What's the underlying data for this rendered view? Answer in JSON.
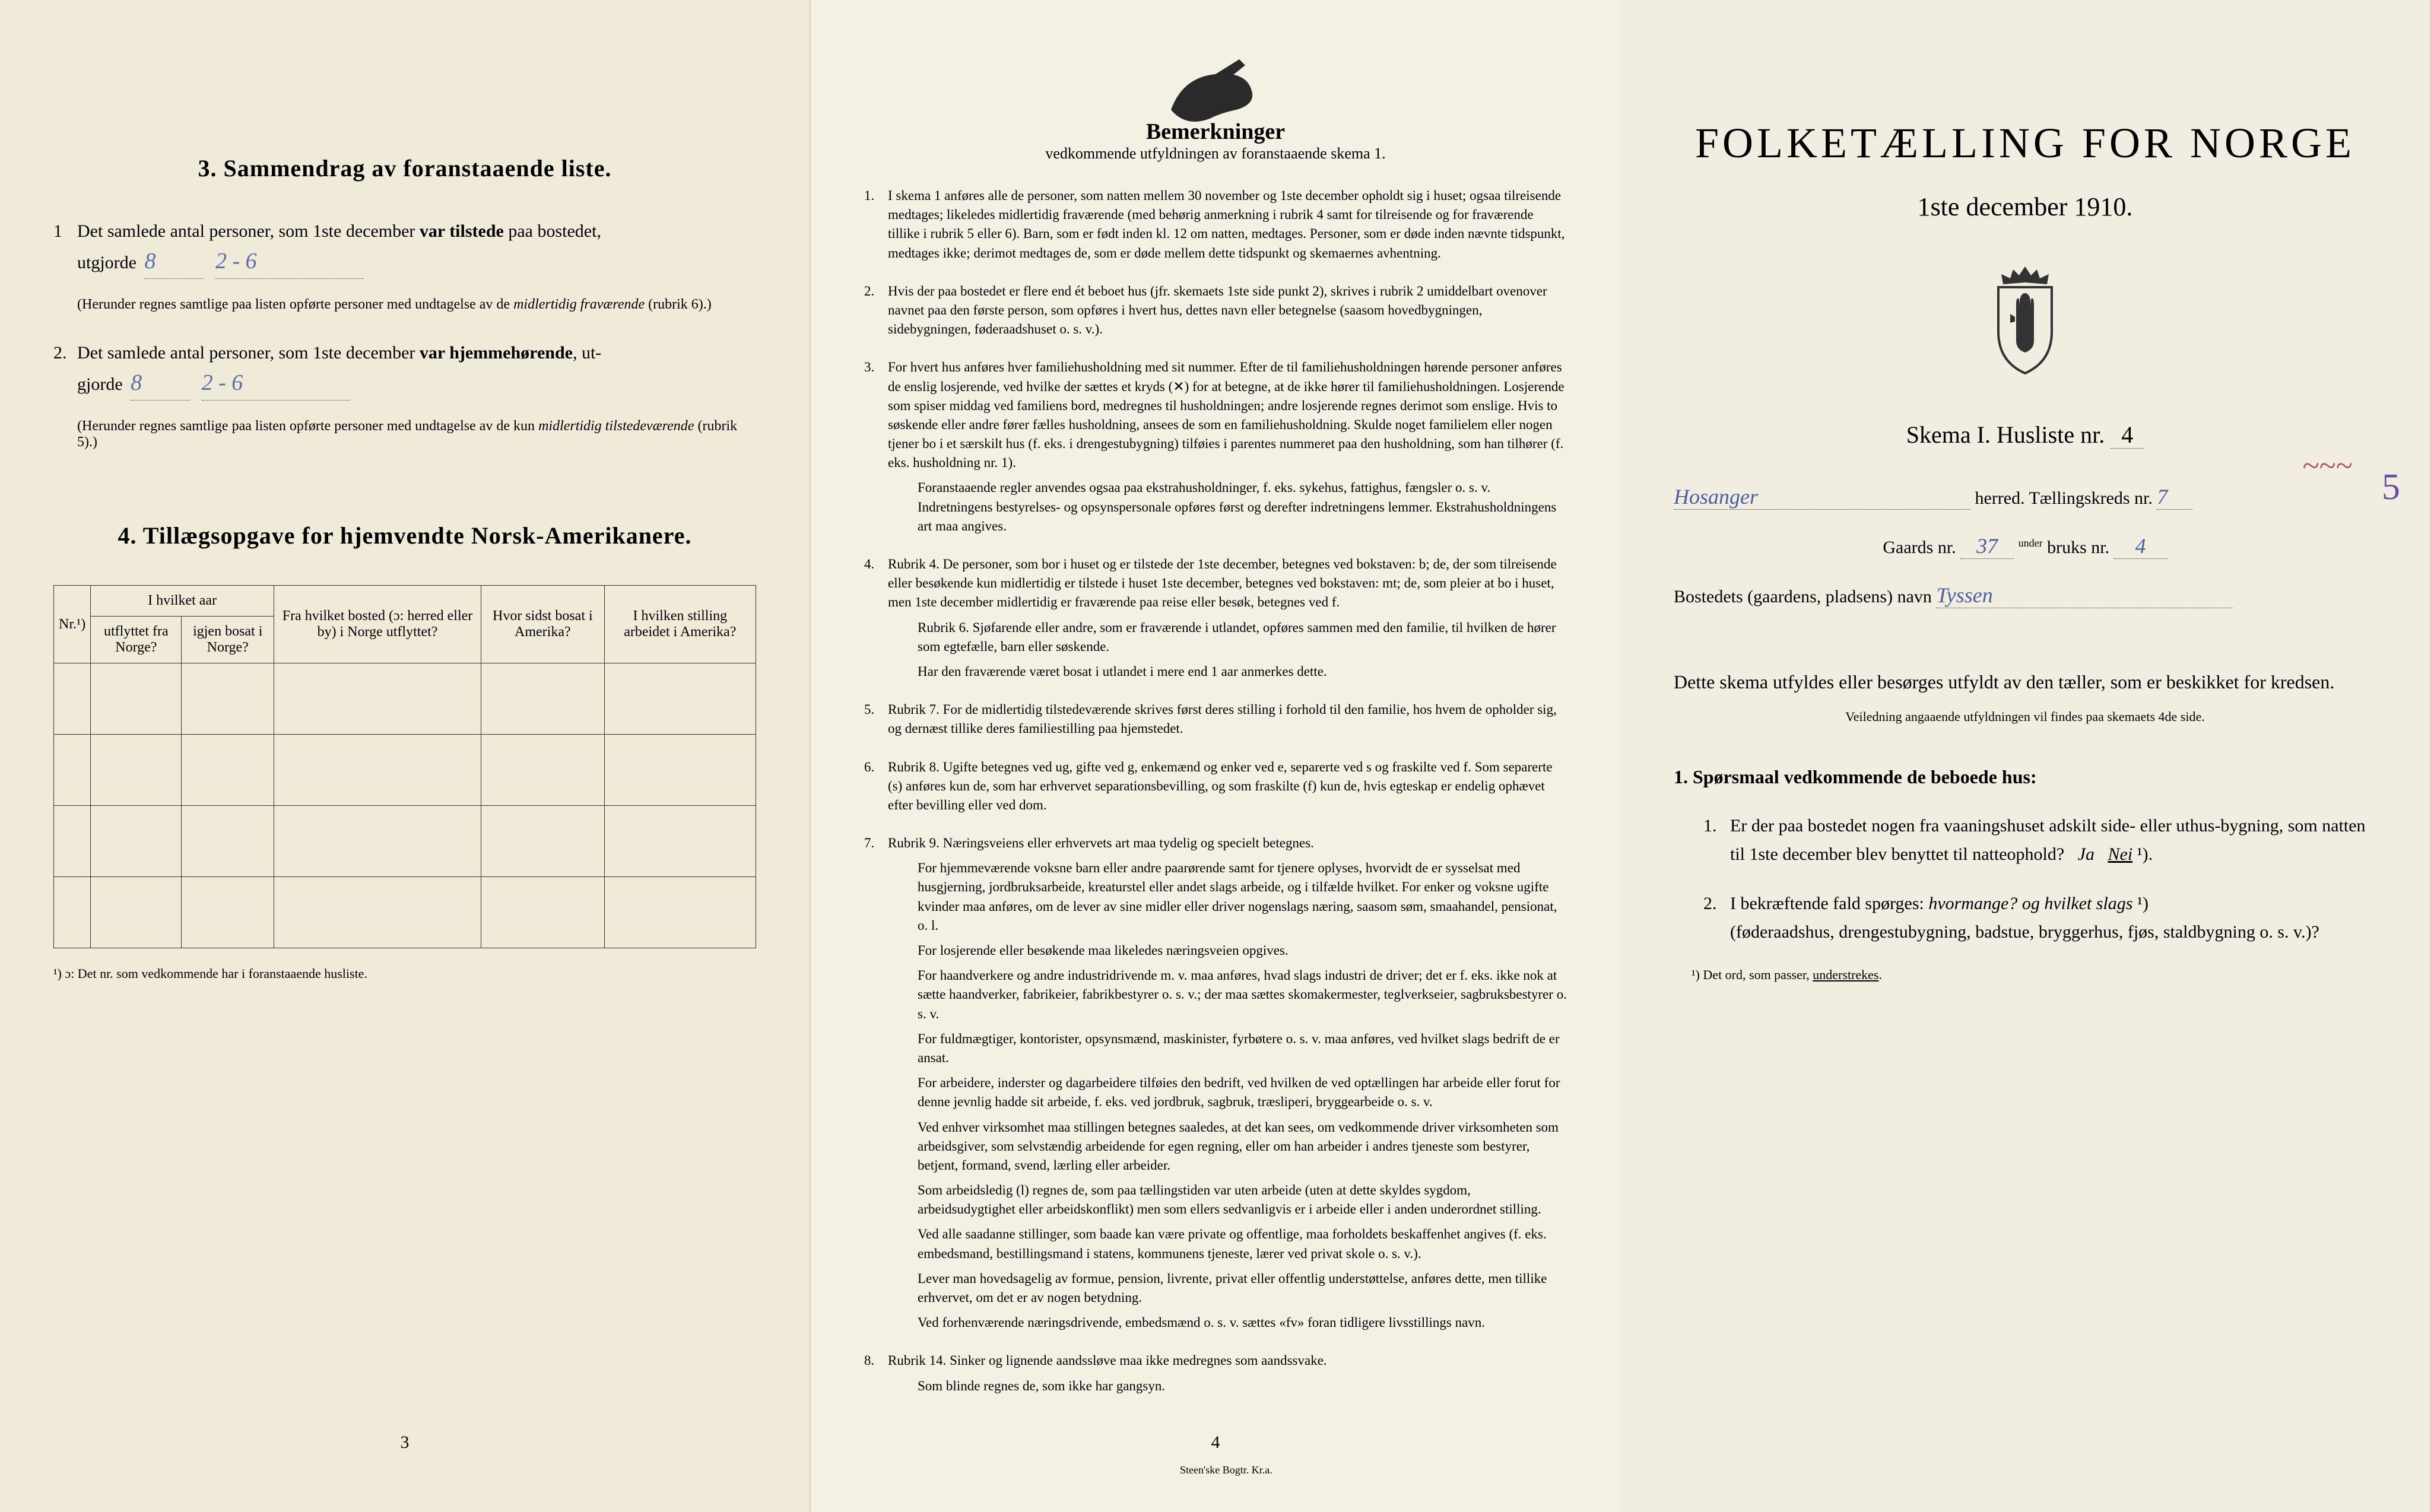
{
  "panel1": {
    "section3_title": "3.   Sammendrag av foranstaaende liste.",
    "item1_prefix": "Det samlede antal personer, som 1ste december",
    "item1_bold": "var tilstede",
    "item1_suffix": "paa bostedet,",
    "item1_line2_prefix": "utgjorde",
    "item1_value1": "8",
    "item1_value2": "2 - 6",
    "item1_note": "(Herunder regnes samtlige paa listen opførte personer med undtagelse av de midlertidig fraværende (rubrik 6).)",
    "item2_prefix": "Det samlede antal personer, som 1ste december",
    "item2_bold": "var hjemmehørende",
    "item2_suffix": ", ut-",
    "item2_line2_prefix": "gjorde",
    "item2_value1": "8",
    "item2_value2": "2 - 6",
    "item2_note": "(Herunder regnes samtlige paa listen opførte personer med undtagelse av de kun midlertidig tilstedeværende (rubrik 5).)",
    "section4_title": "4.  Tillægsopgave for hjemvendte Norsk-Amerikanere.",
    "table": {
      "col_nr": "Nr.¹)",
      "col_aar": "I hvilket aar",
      "col_aar_sub1": "utflyttet fra Norge?",
      "col_aar_sub2": "igjen bosat i Norge?",
      "col_bosted": "Fra hvilket bosted (ɔ: herred eller by) i Norge utflyttet?",
      "col_sidst": "Hvor sidst bosat i Amerika?",
      "col_stilling": "I hvilken stilling arbeidet i Amerika?"
    },
    "footnote": "¹) ɔ: Det nr. som vedkommende har i foranstaaende husliste.",
    "page_num": "3"
  },
  "panel2": {
    "title": "Bemerkninger",
    "subtitle": "vedkommende utfyldningen av foranstaaende skema 1.",
    "rules": [
      {
        "n": "1.",
        "t": "I skema 1 anføres alle de personer, som natten mellem 30 november og 1ste december opholdt sig i huset; ogsaa tilreisende medtages; likeledes midlertidig fraværende (med behørig anmerkning i rubrik 4 samt for tilreisende og for fraværende tillike i rubrik 5 eller 6). Barn, som er født inden kl. 12 om natten, medtages. Personer, som er døde inden nævnte tidspunkt, medtages ikke; derimot medtages de, som er døde mellem dette tidspunkt og skemaernes avhentning."
      },
      {
        "n": "2.",
        "t": "Hvis der paa bostedet er flere end ét beboet hus (jfr. skemaets 1ste side punkt 2), skrives i rubrik 2 umiddelbart ovenover navnet paa den første person, som opføres i hvert hus, dettes navn eller betegnelse (saasom hovedbygningen, sidebygningen, føderaadshuset o. s. v.)."
      },
      {
        "n": "3.",
        "t": "For hvert hus anføres hver familiehusholdning med sit nummer. Efter de til familiehusholdningen hørende personer anføres de enslig losjerende, ved hvilke der sættes et kryds (✕) for at betegne, at de ikke hører til familiehusholdningen. Losjerende som spiser middag ved familiens bord, medregnes til husholdningen; andre losjerende regnes derimot som enslige. Hvis to søskende eller andre fører fælles husholdning, ansees de som en familiehusholdning. Skulde noget familielem eller nogen tjener bo i et særskilt hus (f. eks. i drengestubygning) tilføies i parentes nummeret paa den husholdning, som han tilhører (f. eks. husholdning nr. 1).",
        "extra": "Foranstaaende regler anvendes ogsaa paa ekstrahusholdninger, f. eks. sykehus, fattighus, fængsler o. s. v. Indretningens bestyrelses- og opsynspersonale opføres først og derefter indretningens lemmer. Ekstrahusholdningens art maa angives."
      },
      {
        "n": "4.",
        "t": "Rubrik 4. De personer, som bor i huset og er tilstede der 1ste december, betegnes ved bokstaven: b; de, der som tilreisende eller besøkende kun midlertidig er tilstede i huset 1ste december, betegnes ved bokstaven: mt; de, som pleier at bo i huset, men 1ste december midlertidig er fraværende paa reise eller besøk, betegnes ved f.",
        "extra": "Rubrik 6. Sjøfarende eller andre, som er fraværende i utlandet, opføres sammen med den familie, til hvilken de hører som egtefælle, barn eller søskende.",
        "extra2": "Har den fraværende været bosat i utlandet i mere end 1 aar anmerkes dette."
      },
      {
        "n": "5.",
        "t": "Rubrik 7. For de midlertidig tilstedeværende skrives først deres stilling i forhold til den familie, hos hvem de opholder sig, og dernæst tillike deres familiestilling paa hjemstedet."
      },
      {
        "n": "6.",
        "t": "Rubrik 8. Ugifte betegnes ved ug, gifte ved g, enkemænd og enker ved e, separerte ved s og fraskilte ved f. Som separerte (s) anføres kun de, som har erhvervet separationsbevilling, og som fraskilte (f) kun de, hvis egteskap er endelig ophævet efter bevilling eller ved dom."
      },
      {
        "n": "7.",
        "t": "Rubrik 9. Næringsveiens eller erhvervets art maa tydelig og specielt betegnes.",
        "paras": [
          "For hjemmeværende voksne barn eller andre paarørende samt for tjenere oplyses, hvorvidt de er sysselsat med husgjerning, jordbruksarbeide, kreaturstel eller andet slags arbeide, og i tilfælde hvilket. For enker og voksne ugifte kvinder maa anføres, om de lever av sine midler eller driver nogenslags næring, saasom søm, smaahandel, pensionat, o. l.",
          "For losjerende eller besøkende maa likeledes næringsveien opgives.",
          "For haandverkere og andre industridrivende m. v. maa anføres, hvad slags industri de driver; det er f. eks. ikke nok at sætte haandverker, fabrikeier, fabrikbestyrer o. s. v.; der maa sættes skomakermester, teglverkseier, sagbruksbestyrer o. s. v.",
          "For fuldmægtiger, kontorister, opsynsmænd, maskinister, fyrbøtere o. s. v. maa anføres, ved hvilket slags bedrift de er ansat.",
          "For arbeidere, inderster og dagarbeidere tilføies den bedrift, ved hvilken de ved optællingen har arbeide eller forut for denne jevnlig hadde sit arbeide, f. eks. ved jordbruk, sagbruk, træsliperi, bryggearbeide o. s. v.",
          "Ved enhver virksomhet maa stillingen betegnes saaledes, at det kan sees, om vedkommende driver virksomheten som arbeidsgiver, som selvstændig arbeidende for egen regning, eller om han arbeider i andres tjeneste som bestyrer, betjent, formand, svend, lærling eller arbeider.",
          "Som arbeidsledig (l) regnes de, som paa tællingstiden var uten arbeide (uten at dette skyldes sygdom, arbeidsudygtighet eller arbeidskonflikt) men som ellers sedvanligvis er i arbeide eller i anden underordnet stilling.",
          "Ved alle saadanne stillinger, som baade kan være private og offentlige, maa forholdets beskaffenhet angives (f. eks. embedsmand, bestillingsmand i statens, kommunens tjeneste, lærer ved privat skole o. s. v.).",
          "Lever man hovedsagelig av formue, pension, livrente, privat eller offentlig understøttelse, anføres dette, men tillike erhvervet, om det er av nogen betydning.",
          "Ved forhenværende næringsdrivende, embedsmænd o. s. v. sættes «fv» foran tidligere livsstillings navn."
        ]
      },
      {
        "n": "8.",
        "t": "Rubrik 14. Sinker og lignende aandssløve maa ikke medregnes som aandssvake.",
        "extra": "Som blinde regnes de, som ikke har gangsyn."
      }
    ],
    "page_num": "4",
    "printer": "Steen'ske Bogtr.  Kr.a."
  },
  "panel3": {
    "main_title": "FOLKETÆLLING FOR NORGE",
    "date": "1ste december 1910.",
    "skema_label": "Skema I.  Husliste nr.",
    "skema_value": "4",
    "herred_value": "Hosanger",
    "herred_label": "herred.  Tællingskreds nr.",
    "kreds_value": "7",
    "red_mark": "5",
    "gaards_label": "Gaards nr.",
    "gaards_value": "37",
    "gaards_note": "under",
    "bruks_label": "bruks nr.",
    "bruks_value": "4",
    "bosted_label": "Bostedets (gaardens, pladsens) navn",
    "bosted_value": "Tyssen",
    "body_para": "Dette skema utfyldes eller besørges utfyldt av den tæller, som er beskikket for kredsen.",
    "small_center": "Veiledning angaaende utfyldningen vil findes paa skemaets 4de side.",
    "q_heading": "1. Spørsmaal vedkommende de beboede hus:",
    "q1_num": "1.",
    "q1_text": "Er der paa bostedet nogen fra vaaningshuset adskilt side- eller uthus-bygning, som natten til 1ste december blev benyttet til natteophold?",
    "q1_ja": "Ja",
    "q1_nei": "Nei",
    "q1_sup": "¹).",
    "q2_num": "2.",
    "q2_text_a": "I bekræftende fald spørges:",
    "q2_text_b": "hvormange?",
    "q2_text_c": "og hvilket slags",
    "q2_sup": "¹)",
    "q2_text_d": "(føderaadshus, drengestubygning, badstue, bryggerhus, fjøs, staldbygning o. s. v.)?",
    "footnote": "¹) Det ord, som passer, understrekes."
  }
}
